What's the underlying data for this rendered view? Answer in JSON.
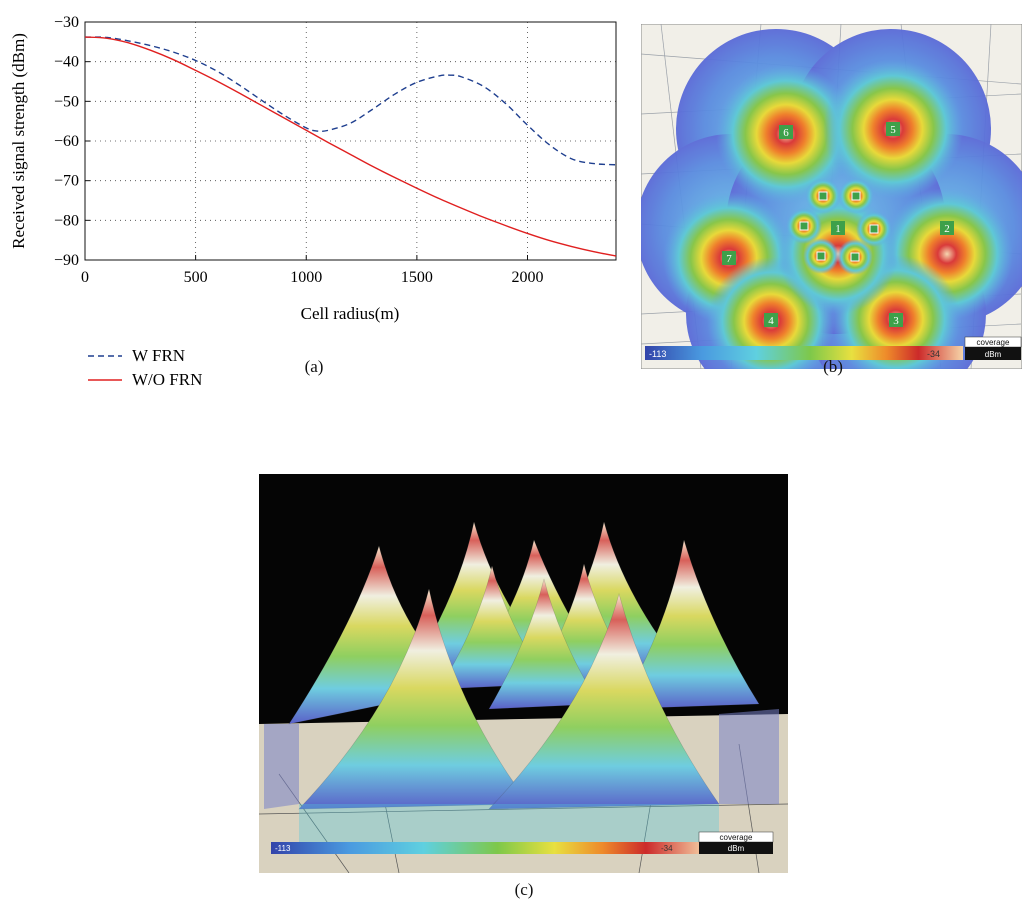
{
  "figure": {
    "captions": {
      "a": "(a)",
      "b": "(b)",
      "c": "(c)"
    }
  },
  "chart_data": {
    "type": "line",
    "xlabel": "Cell radius(m)",
    "ylabel": "Received signal strength (dBm)",
    "xlim": [
      0,
      2400
    ],
    "ylim": [
      -90,
      -30
    ],
    "xticks": [
      "0",
      "500",
      "1000",
      "1500",
      "2000"
    ],
    "yticks": [
      "−30",
      "−40",
      "−50",
      "−60",
      "−70",
      "−80",
      "−90"
    ],
    "grid": "dotted",
    "legend_position": "below",
    "series": [
      {
        "name": "W FRN",
        "style": "dashed",
        "color": "#1f3f8f",
        "x": [
          0,
          100,
          200,
          300,
          400,
          500,
          600,
          700,
          800,
          900,
          1000,
          1050,
          1100,
          1200,
          1300,
          1400,
          1500,
          1600,
          1650,
          1700,
          1800,
          1900,
          2000,
          2100,
          2200,
          2300,
          2400
        ],
        "y": [
          -33.8,
          -33.9,
          -34.8,
          -36.0,
          -37.6,
          -39.7,
          -42.5,
          -46.0,
          -49.8,
          -53.5,
          -56.7,
          -57.5,
          -57.3,
          -55.5,
          -52.0,
          -48.2,
          -45.2,
          -43.6,
          -43.4,
          -43.8,
          -46.2,
          -50.5,
          -56.0,
          -61.0,
          -64.5,
          -65.7,
          -66.0
        ]
      },
      {
        "name": "W/O FRN",
        "style": "solid",
        "color": "#e02020",
        "x": [
          0,
          100,
          200,
          300,
          400,
          500,
          600,
          700,
          800,
          900,
          1000,
          1100,
          1200,
          1300,
          1400,
          1500,
          1600,
          1700,
          1800,
          1900,
          2000,
          2100,
          2200,
          2300,
          2400
        ],
        "y": [
          -33.8,
          -34.1,
          -35.3,
          -37.2,
          -39.5,
          -42.2,
          -45.0,
          -48.0,
          -51.1,
          -54.2,
          -57.3,
          -60.4,
          -63.4,
          -66.4,
          -69.2,
          -71.9,
          -74.5,
          -76.9,
          -79.2,
          -81.3,
          -83.3,
          -85.1,
          -86.6,
          -87.9,
          -89.0
        ]
      }
    ]
  },
  "coverage_map": {
    "cells": [
      "1",
      "2",
      "3",
      "4",
      "5",
      "6",
      "7"
    ],
    "legend_min": "-113",
    "legend_max": "-34",
    "legend_title": "coverage",
    "legend_unit": "dBm"
  },
  "coverage_3d": {
    "legend_min": "-113",
    "legend_max": "-34",
    "legend_title": "coverage",
    "legend_unit": "dBm"
  }
}
